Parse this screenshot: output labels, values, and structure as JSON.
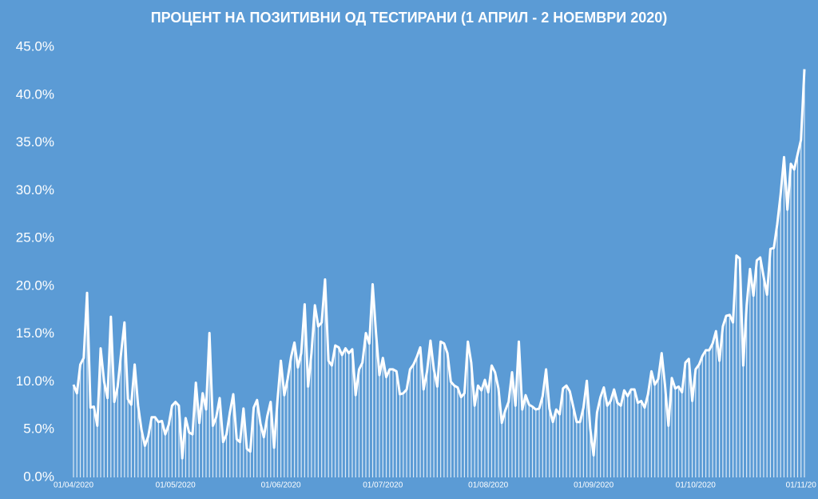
{
  "chart_data": {
    "type": "line",
    "title": "ПРОЦЕНТ НА ПОЗИТИВНИ ОД ТЕСТИРАНИ (1 АПРИЛ - 2 НОЕМВРИ 2020)",
    "color": "#ffffff",
    "background": "#5b9bd5",
    "ylim": [
      0,
      45
    ],
    "yticks": [
      {
        "value": 0,
        "label": "0.0%"
      },
      {
        "value": 5,
        "label": "5.0%"
      },
      {
        "value": 10,
        "label": "10.0%"
      },
      {
        "value": 15,
        "label": "15.0%"
      },
      {
        "value": 20,
        "label": "20.0%"
      },
      {
        "value": 25,
        "label": "25.0%"
      },
      {
        "value": 30,
        "label": "30.0%"
      },
      {
        "value": 35,
        "label": "35.0%"
      },
      {
        "value": 40,
        "label": "40.0%"
      },
      {
        "value": 45,
        "label": "45.0%"
      }
    ],
    "categories": [
      "01/04/2020",
      null,
      null,
      null,
      null,
      null,
      null,
      null,
      null,
      null,
      null,
      null,
      null,
      null,
      null,
      null,
      null,
      null,
      null,
      null,
      null,
      null,
      null,
      null,
      null,
      null,
      null,
      null,
      null,
      null,
      "01/05/2020",
      null,
      null,
      null,
      null,
      null,
      null,
      null,
      null,
      null,
      null,
      null,
      null,
      null,
      null,
      null,
      null,
      null,
      null,
      null,
      null,
      null,
      null,
      null,
      null,
      null,
      null,
      null,
      null,
      null,
      null,
      "01/06/2020",
      null,
      null,
      null,
      null,
      null,
      null,
      null,
      null,
      null,
      null,
      null,
      null,
      null,
      null,
      null,
      null,
      null,
      null,
      null,
      null,
      null,
      null,
      null,
      null,
      null,
      null,
      null,
      null,
      null,
      "01/07/2020",
      null,
      null,
      null,
      null,
      null,
      null,
      null,
      null,
      null,
      null,
      null,
      null,
      null,
      null,
      null,
      null,
      null,
      null,
      null,
      null,
      null,
      null,
      null,
      null,
      null,
      null,
      null,
      null,
      null,
      null,
      "01/08/2020",
      null,
      null,
      null,
      null,
      null,
      null,
      null,
      null,
      null,
      null,
      null,
      null,
      null,
      null,
      null,
      null,
      null,
      null,
      null,
      null,
      null,
      null,
      null,
      null,
      null,
      null,
      null,
      null,
      null,
      null,
      "01/09/2020",
      null,
      null,
      null,
      null,
      null,
      null,
      null,
      null,
      null,
      null,
      null,
      null,
      null,
      null,
      null,
      null,
      null,
      null,
      null,
      null,
      null,
      null,
      null,
      null,
      null,
      null,
      null,
      null,
      null,
      "01/10/2020",
      null,
      null,
      null,
      null,
      null,
      null,
      null,
      null,
      null,
      null,
      null,
      null,
      null,
      null,
      null,
      null,
      null,
      null,
      null,
      null,
      null,
      null,
      null,
      null,
      null,
      null,
      null,
      null,
      null,
      null,
      "01/11/20",
      null
    ],
    "values": [
      9.7,
      8.8,
      11.8,
      12.5,
      19.3,
      7.3,
      7.4,
      5.4,
      13.5,
      10,
      8.3,
      16.8,
      7.9,
      9.5,
      13,
      16.2,
      8.2,
      7.6,
      11.8,
      7.5,
      5,
      3.3,
      4.3,
      6.3,
      6.3,
      5.8,
      5.9,
      4.5,
      5.5,
      7.5,
      7.9,
      7.5,
      2.0,
      6.2,
      4.7,
      4.5,
      9.9,
      5.7,
      8.8,
      7.1,
      15.1,
      5.4,
      6.3,
      8.3,
      3.7,
      4.5,
      6.8,
      8.7,
      4.0,
      3.7,
      7.2,
      3.0,
      2.7,
      7.3,
      8.1,
      5.6,
      4.2,
      6.4,
      7.9,
      3.1,
      8.0,
      12.2,
      8.6,
      10.3,
      12.6,
      14.1,
      11.5,
      13.0,
      18.1,
      9.5,
      13.0,
      18.0,
      15.8,
      16.2,
      20.7,
      12.2,
      11.7,
      13.8,
      13.6,
      12.8,
      13.5,
      13.0,
      13.4,
      8.6,
      11.3,
      12.0,
      15.1,
      14.0,
      20.2,
      15.0,
      10.7,
      12.5,
      10.5,
      11.3,
      11.3,
      11.1,
      8.7,
      8.8,
      9.2,
      11.3,
      11.8,
      12.6,
      13.6,
      9.2,
      11.1,
      14.3,
      11.3,
      9.5,
      14.2,
      14.0,
      13.0,
      10.0,
      9.6,
      9.4,
      8.4,
      8.8,
      14.2,
      12.0,
      7.5,
      9.6,
      9.1,
      10.2,
      8.9,
      11.7,
      11.0,
      9.3,
      5.7,
      7.0,
      7.9,
      11.0,
      7.5,
      14.2,
      7.1,
      8.6,
      7.6,
      7.4,
      7.1,
      7.2,
      8.5,
      11.3,
      7.2,
      5.8,
      7.1,
      6.6,
      9.3,
      9.6,
      9.0,
      7.4,
      5.8,
      5.8,
      7.3,
      10.1,
      5.1,
      2.3,
      6.8,
      8.4,
      9.4,
      7.5,
      8.0,
      9.2,
      7.8,
      7.5,
      9.1,
      8.5,
      9.2,
      9.2,
      7.8,
      8.0,
      7.3,
      8.7,
      11.1,
      9.7,
      10.3,
      13.0,
      9.6,
      5.4,
      10.4,
      9.3,
      9.5,
      8.9,
      12.0,
      12.4,
      8.0,
      11.3,
      11.8,
      12.7,
      13.3,
      13.3,
      14.0,
      15.3,
      12.2,
      15.8,
      16.9,
      17.0,
      16.2,
      23.2,
      22.9,
      11.7,
      18.0,
      21.8,
      19.0,
      22.7,
      23.0,
      21.0,
      19.1,
      23.9,
      24.0,
      26.5,
      29.6,
      33.5,
      28.0,
      32.8,
      32.2,
      33.8,
      35.3,
      42.7
    ]
  }
}
